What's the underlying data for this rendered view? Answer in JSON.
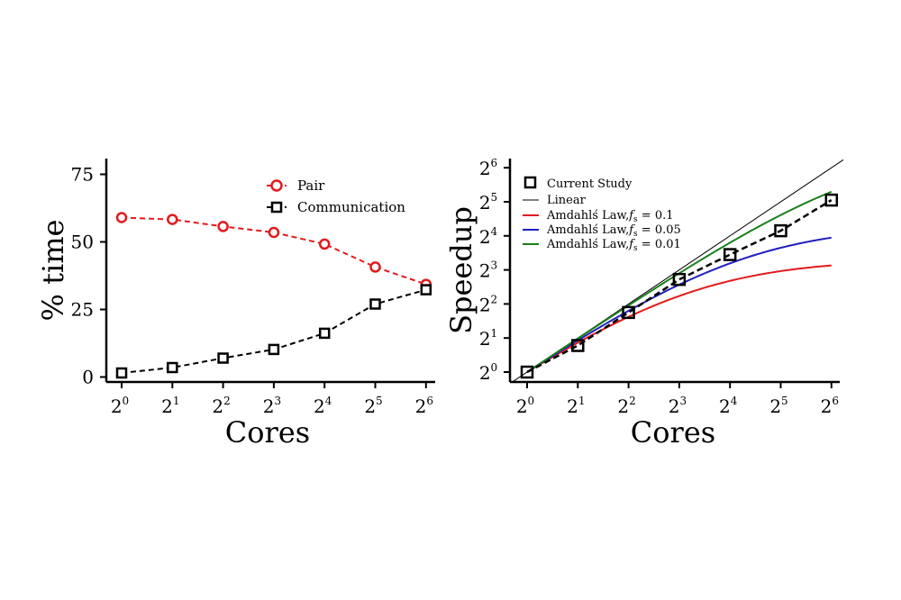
{
  "chart_data": [
    {
      "type": "line",
      "xlabel": "Cores",
      "ylabel": "% time",
      "x_scale": "log2",
      "x": [
        0,
        1,
        2,
        3,
        4,
        5,
        6
      ],
      "xtick_base": "2",
      "xtick_exponents": [
        "0",
        "1",
        "2",
        "3",
        "4",
        "5",
        "6"
      ],
      "yticks": [
        "0",
        "25",
        "50",
        "75"
      ],
      "ylim": [
        -2,
        80
      ],
      "legend_position": "top-right",
      "series": [
        {
          "name": "Pair",
          "color": "#e41a1c",
          "marker": "circle",
          "style": "dashed",
          "values": [
            59,
            58.3,
            55.7,
            53.5,
            49.2,
            40.7,
            34.3
          ]
        },
        {
          "name": "Communication",
          "color": "#000000",
          "marker": "square",
          "style": "dashed",
          "values": [
            1.5,
            3.5,
            7.0,
            10.2,
            16.2,
            27.0,
            32.3
          ]
        }
      ]
    },
    {
      "type": "line",
      "xlabel": "Cores",
      "ylabel": "Speedup",
      "x_scale": "log2",
      "y_scale": "log2",
      "x": [
        0,
        1,
        2,
        3,
        4,
        5,
        6
      ],
      "xtick_base": "2",
      "xtick_exponents": [
        "0",
        "1",
        "2",
        "3",
        "4",
        "5",
        "6"
      ],
      "ytick_base": "2",
      "ytick_exponents": [
        "0",
        "1",
        "2",
        "3",
        "4",
        "5",
        "6"
      ],
      "legend_position": "top-left",
      "series": [
        {
          "name": "Current Study",
          "color": "#000000",
          "marker": "square",
          "style": "dashed",
          "values": [
            0,
            0.78,
            1.75,
            2.72,
            3.45,
            4.15,
            5.05
          ]
        },
        {
          "name": "Linear",
          "color": "#000000",
          "style": "thin-solid",
          "values": [
            0,
            1,
            2,
            3,
            4,
            5,
            6
          ]
        },
        {
          "name": "Amdahlś Law,",
          "fs_label": "f",
          "fs_sub": "s",
          "fs_value": " = 0.1",
          "color": "#e41a1c",
          "style": "solid",
          "serial_fraction": 0.1
        },
        {
          "name": "Amdahlś Law,",
          "fs_label": "f",
          "fs_sub": "s",
          "fs_value": " = 0.05",
          "color": "#1f1fbf",
          "style": "solid",
          "serial_fraction": 0.05
        },
        {
          "name": "Amdahlś Law,",
          "fs_label": "f",
          "fs_sub": "s",
          "fs_value": " = 0.01",
          "color": "#1a7f1a",
          "style": "solid",
          "serial_fraction": 0.01
        }
      ]
    }
  ]
}
